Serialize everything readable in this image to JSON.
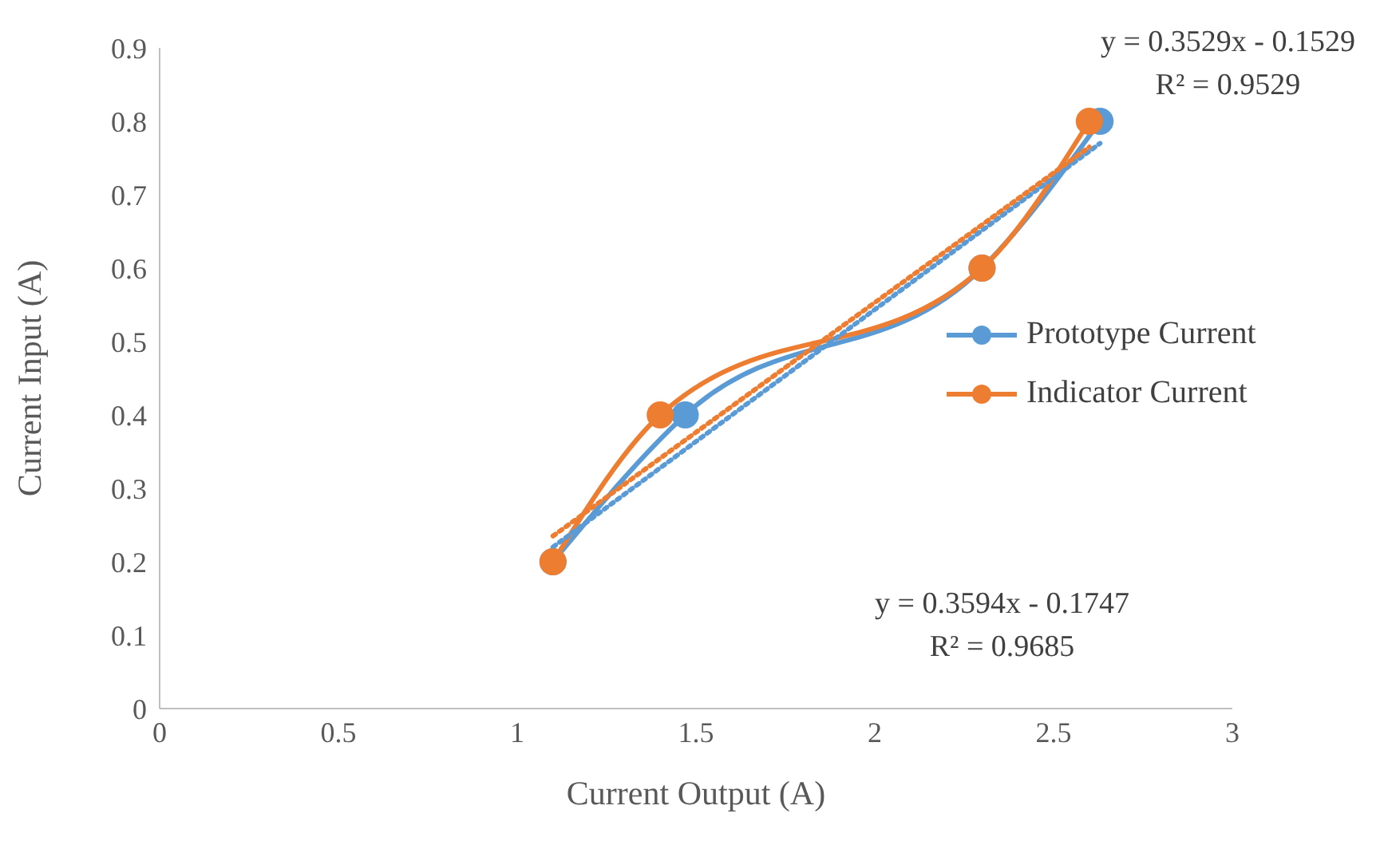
{
  "chart_data": {
    "type": "line",
    "xlabel": "Current Output (A)",
    "ylabel": "Current Input (A)",
    "xlim": [
      0,
      3
    ],
    "xticks": [
      0,
      0.5,
      1,
      1.5,
      2,
      2.5,
      3
    ],
    "ylim": [
      0,
      0.9
    ],
    "yticks": [
      0,
      0.1,
      0.2,
      0.3,
      0.4,
      0.5,
      0.6,
      0.7,
      0.8,
      0.9
    ],
    "grid": false,
    "legend": "right",
    "marker": "circle",
    "line_style": "solid",
    "series": [
      {
        "name": "Prototype Current",
        "color": "#5b9bd5",
        "x": [
          1.1,
          1.47,
          2.3,
          2.63
        ],
        "values": [
          0.2,
          0.4,
          0.6,
          0.8
        ]
      },
      {
        "name": "Indicator Current",
        "color": "#ed7d31",
        "x": [
          1.1,
          1.4,
          2.3,
          2.6
        ],
        "values": [
          0.2,
          0.4,
          0.6,
          0.8
        ]
      },
      {
        "type": "line",
        "color": "#5b9bd5",
        "line_style": "dotted",
        "marker": "none",
        "x": [
          1.1,
          2.63
        ],
        "values": [
          0.22,
          0.77
        ]
      },
      {
        "type": "line",
        "color": "#ed7d31",
        "line_style": "dotted",
        "marker": "none",
        "x": [
          1.1,
          2.6
        ],
        "values": [
          0.235,
          0.765
        ]
      }
    ],
    "annotations": [
      "y = 0.3529x - 0.1529\nR² = 0.9529",
      "y = 0.3594x - 0.1747\nR² = 0.9685"
    ]
  }
}
